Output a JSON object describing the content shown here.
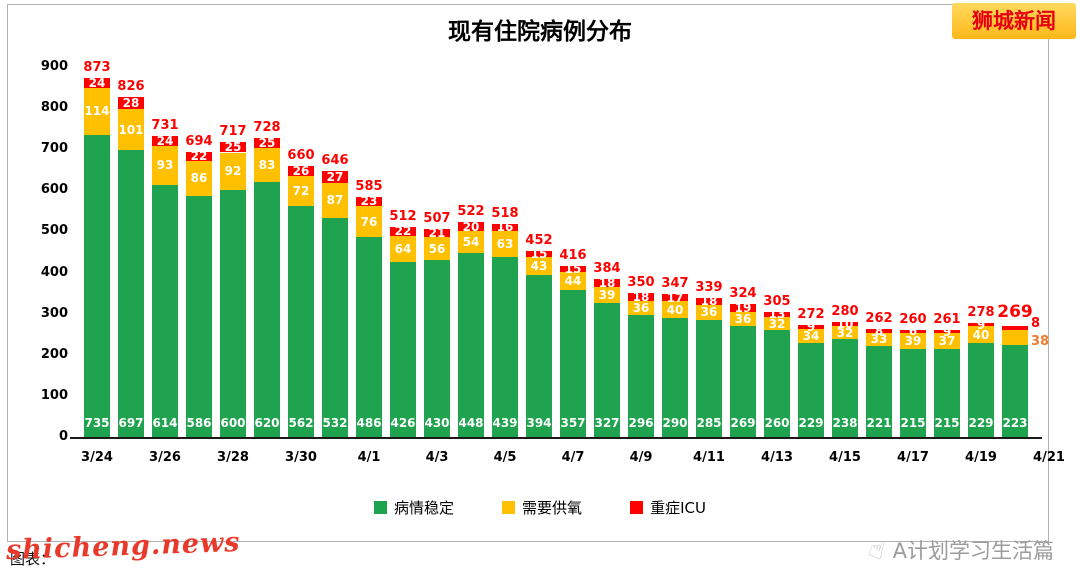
{
  "header": {
    "logo": "狮城新闻"
  },
  "colors": {
    "bar_stable": "#1FA34F",
    "bar_oxygen": "#FFC000",
    "bar_icu": "#FF0000",
    "total_label": "#FF0000",
    "outside_oxygen_label": "#ED7D31",
    "watermark": "#E8392B",
    "footer_text": "#9C9C9C",
    "logo_bg": "#FFC324",
    "logo_text": "#E60012"
  },
  "chart_data": {
    "type": "bar",
    "subtype": "stacked",
    "title": "现有住院病例分布",
    "xlabel": "",
    "ylabel": "",
    "ylim": [
      0,
      900
    ],
    "yticks": [
      0,
      100,
      200,
      300,
      400,
      500,
      600,
      700,
      800,
      900
    ],
    "grid": false,
    "legend_position": "bottom",
    "x_tick_labels": [
      "3/24",
      "3/26",
      "3/28",
      "3/30",
      "4/1",
      "4/3",
      "4/5",
      "4/7",
      "4/9",
      "4/11",
      "4/13",
      "4/15",
      "4/17",
      "4/19",
      "4/21"
    ],
    "series": [
      {
        "name": "病情稳定",
        "color": "#1FA34F",
        "values": [
          735,
          697,
          614,
          586,
          600,
          620,
          562,
          532,
          486,
          426,
          430,
          448,
          439,
          394,
          357,
          327,
          296,
          290,
          285,
          269,
          260,
          229,
          238,
          221,
          215,
          215,
          229,
          223
        ]
      },
      {
        "name": "需要供氧",
        "color": "#FFC000",
        "values": [
          114,
          101,
          93,
          86,
          92,
          83,
          72,
          87,
          76,
          64,
          56,
          54,
          63,
          43,
          44,
          39,
          36,
          40,
          36,
          36,
          32,
          34,
          32,
          33,
          39,
          37,
          40,
          38
        ]
      },
      {
        "name": "重症ICU",
        "color": "#FF0000",
        "values": [
          24,
          28,
          24,
          22,
          25,
          25,
          26,
          27,
          23,
          22,
          21,
          20,
          16,
          15,
          15,
          18,
          18,
          17,
          18,
          19,
          13,
          9,
          10,
          8,
          6,
          9,
          9,
          8
        ]
      }
    ],
    "totals": [
      873,
      826,
      731,
      694,
      717,
      728,
      660,
      646,
      585,
      512,
      507,
      522,
      518,
      452,
      416,
      384,
      350,
      347,
      339,
      324,
      305,
      272,
      280,
      262,
      260,
      261,
      278,
      269
    ]
  },
  "footer": {
    "source_prefix": "图表：",
    "watermark": "shicheng.news",
    "hand_glyph": "☝",
    "brand": "A计划学习生活篇"
  }
}
